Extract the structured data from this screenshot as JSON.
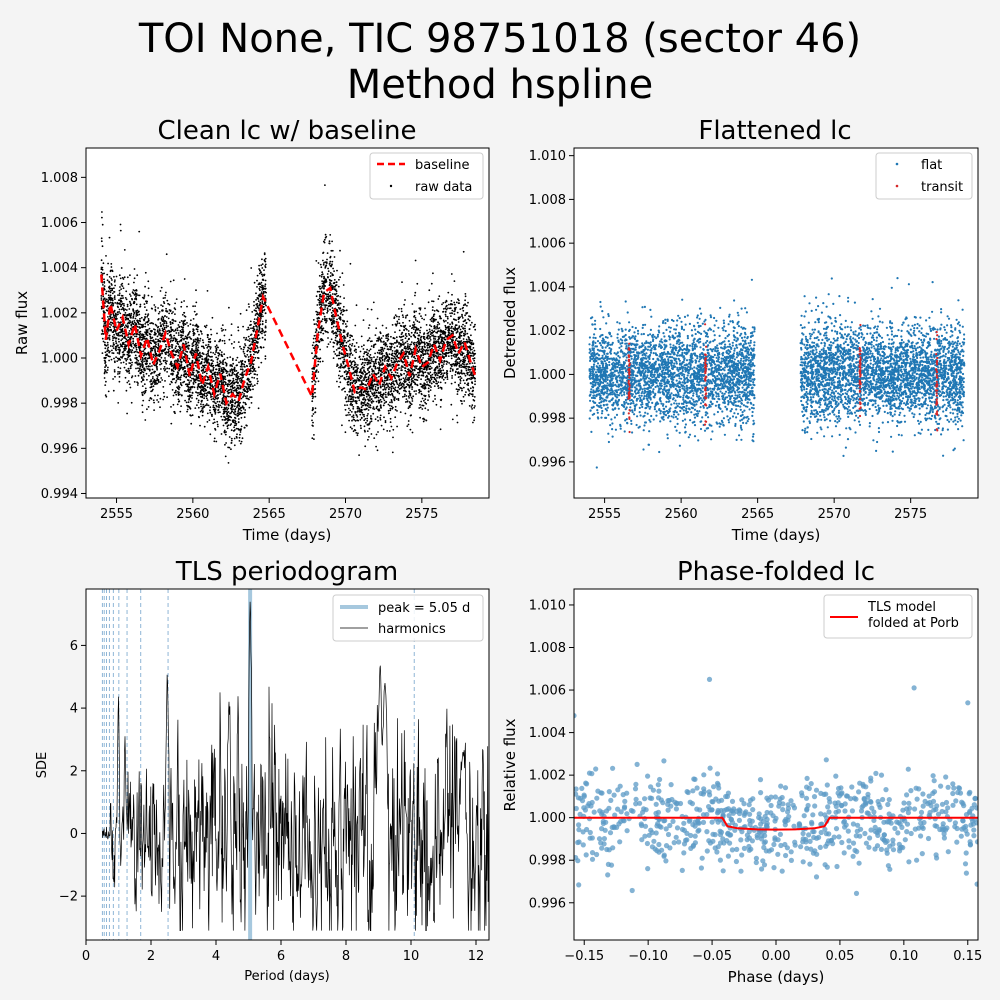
{
  "figure": {
    "title_line1": "TOI None, TIC 98751018 (sector 46)",
    "title_line2": "Method hspline",
    "background": "#f4f4f4"
  },
  "colors": {
    "flat": "#1f77b4",
    "transit": "#d62728",
    "baseline": "#ff0000",
    "raw": "#000000",
    "peak": "#a6c8de",
    "harmonic": "#8fb6d6",
    "model": "#ff0000",
    "folded": "#5b9ac6"
  },
  "chart_data": [
    {
      "type": "scatter",
      "title": "Clean lc w/ baseline",
      "xlabel": "Time (days)",
      "ylabel": "Raw flux",
      "xlim": [
        2553.0,
        2579.4
      ],
      "ylim": [
        0.9938,
        1.0093
      ],
      "xticks": [
        2555,
        2560,
        2565,
        2570,
        2575
      ],
      "xtick_labels": [
        "2555",
        "2560",
        "2565",
        "2570",
        "2575"
      ],
      "yticks": [
        0.994,
        0.996,
        0.998,
        1.0,
        1.002,
        1.004,
        1.006,
        1.008
      ],
      "ytick_labels": [
        "0.994",
        "0.996",
        "0.998",
        "1.000",
        "1.002",
        "1.004",
        "1.006",
        "1.008"
      ],
      "legend": {
        "position": "upper right",
        "entries": [
          "baseline",
          "raw data"
        ]
      },
      "series": [
        {
          "name": "baseline",
          "style": "dashed line",
          "x": [
            2554.0,
            2554.3,
            2554.6,
            2555.0,
            2555.4,
            2555.8,
            2556.2,
            2556.6,
            2557.0,
            2557.4,
            2557.8,
            2558.2,
            2558.6,
            2559.0,
            2559.4,
            2559.8,
            2560.2,
            2560.6,
            2561.0,
            2561.4,
            2561.8,
            2562.2,
            2562.6,
            2563.0,
            2563.4,
            2563.8,
            2564.2,
            2564.6,
            2567.8,
            2568.2,
            2568.6,
            2569.0,
            2569.4,
            2569.8,
            2570.2,
            2570.6,
            2571.0,
            2571.4,
            2571.8,
            2572.2,
            2572.6,
            2573.0,
            2573.4,
            2573.8,
            2574.2,
            2574.6,
            2575.0,
            2575.4,
            2575.8,
            2576.2,
            2576.6,
            2577.0,
            2577.4,
            2577.8,
            2578.2,
            2578.5
          ],
          "y": [
            1.0037,
            1.0008,
            1.0024,
            1.0012,
            1.0018,
            1.0006,
            1.0015,
            1.0001,
            1.0009,
            0.9997,
            1.0003,
            1.0011,
            1.0002,
            0.9996,
            1.0006,
            0.9992,
            1.0002,
            0.9988,
            0.9996,
            0.9984,
            0.9993,
            0.998,
            0.9984,
            0.9981,
            0.9991,
            0.9998,
            1.0012,
            1.0027,
            0.9983,
            1.0012,
            1.0029,
            1.0031,
            1.0018,
            1.0006,
            0.9996,
            0.9985,
            0.9987,
            0.9986,
            0.9993,
            0.9988,
            0.9996,
            0.9991,
            0.9998,
            1.0002,
            0.9992,
            1.0004,
            0.9996,
            0.9998,
            1.0006,
            0.9999,
            1.0008,
            1.001,
            1.0002,
            1.0007,
            0.9998,
            0.9992
          ]
        },
        {
          "name": "raw data",
          "style": "points",
          "segments": [
            [
              2554.0,
              2564.8
            ],
            [
              2567.8,
              2578.5
            ]
          ],
          "approx_points": 6800,
          "note_visible": ""
        }
      ]
    },
    {
      "type": "scatter",
      "title": "Flattened lc",
      "xlabel": "Time (days)",
      "ylabel": "Detrended flux",
      "xlim": [
        2553.0,
        2579.4
      ],
      "ylim": [
        0.99435,
        1.01035
      ],
      "xticks": [
        2555,
        2560,
        2565,
        2570,
        2575
      ],
      "xtick_labels": [
        "2555",
        "2560",
        "2565",
        "2570",
        "2575"
      ],
      "yticks": [
        0.996,
        0.998,
        1.0,
        1.002,
        1.004,
        1.006,
        1.008,
        1.01
      ],
      "ytick_labels": [
        "0.996",
        "0.998",
        "1.000",
        "1.002",
        "1.004",
        "1.006",
        "1.008",
        "1.010"
      ],
      "legend": {
        "position": "upper right",
        "entries": [
          "flat",
          "transit"
        ]
      },
      "series": [
        {
          "name": "flat",
          "segments": [
            [
              2554.0,
              2564.8
            ],
            [
              2567.8,
              2578.5
            ]
          ],
          "scatter_sigma": 0.0011
        },
        {
          "name": "transit",
          "transit_times": [
            2556.6,
            2561.6,
            2571.7,
            2576.7
          ],
          "duration": 0.08
        }
      ]
    },
    {
      "type": "line",
      "title": "TLS periodogram",
      "xlabel": "Period (days)",
      "ylabel": "SDE",
      "xlim": [
        0,
        12.4
      ],
      "ylim": [
        -3.4,
        7.8
      ],
      "xticks": [
        0,
        2,
        4,
        6,
        8,
        10,
        12
      ],
      "xtick_labels": [
        "0",
        "2",
        "4",
        "6",
        "8",
        "10",
        "12"
      ],
      "yticks": [
        -2,
        0,
        2,
        4,
        6
      ],
      "ytick_labels": [
        "−2",
        "0",
        "2",
        "4",
        "6"
      ],
      "legend": {
        "position": "upper right",
        "entries": [
          "peak = 5.05 d",
          "harmonics"
        ]
      },
      "peak_period": 5.05,
      "peak_sde": 7.4,
      "harmonic_periods": [
        0.505,
        0.561,
        0.631,
        0.721,
        0.842,
        1.01,
        1.263,
        1.683,
        2.525,
        10.1
      ],
      "period_range": [
        0.5,
        12.4
      ],
      "notable_peaks": [
        [
          1.0,
          4.4
        ],
        [
          1.2,
          3.1
        ],
        [
          2.5,
          5.1
        ],
        [
          4.4,
          4.2
        ],
        [
          5.05,
          7.4
        ],
        [
          9.05,
          5.4
        ],
        [
          9.2,
          4.8
        ],
        [
          11.6,
          2.6
        ]
      ]
    },
    {
      "type": "scatter",
      "title": "Phase-folded lc",
      "xlabel": "Phase (days)",
      "ylabel": "Relative flux",
      "xlim": [
        -0.158,
        0.158
      ],
      "ylim": [
        0.99425,
        1.01075
      ],
      "xticks": [
        -0.15,
        -0.1,
        -0.05,
        0.0,
        0.05,
        0.1,
        0.15
      ],
      "xtick_labels": [
        "−0.15",
        "−0.10",
        "−0.05",
        "0.00",
        "0.05",
        "0.10",
        "0.15"
      ],
      "yticks": [
        0.996,
        0.998,
        1.0,
        1.002,
        1.004,
        1.006,
        1.008,
        1.01
      ],
      "ytick_labels": [
        "0.996",
        "0.998",
        "1.000",
        "1.002",
        "1.004",
        "1.006",
        "1.008",
        "1.010"
      ],
      "legend": {
        "position": "upper right",
        "entries": [
          "TLS model",
          "folded at Porb"
        ]
      },
      "model": {
        "x": [
          -0.158,
          -0.042,
          -0.038,
          -0.03,
          -0.015,
          0.0,
          0.015,
          0.03,
          0.038,
          0.042,
          0.158
        ],
        "y": [
          1.0,
          1.0,
          0.9996,
          0.9995,
          0.99945,
          0.99944,
          0.99945,
          0.9995,
          0.9996,
          1.0,
          1.0
        ]
      },
      "outliers": [
        [
          -0.052,
          1.0065
        ],
        [
          0.108,
          1.0061
        ],
        [
          0.15,
          1.0054
        ],
        [
          -0.158,
          1.0048
        ]
      ]
    }
  ]
}
